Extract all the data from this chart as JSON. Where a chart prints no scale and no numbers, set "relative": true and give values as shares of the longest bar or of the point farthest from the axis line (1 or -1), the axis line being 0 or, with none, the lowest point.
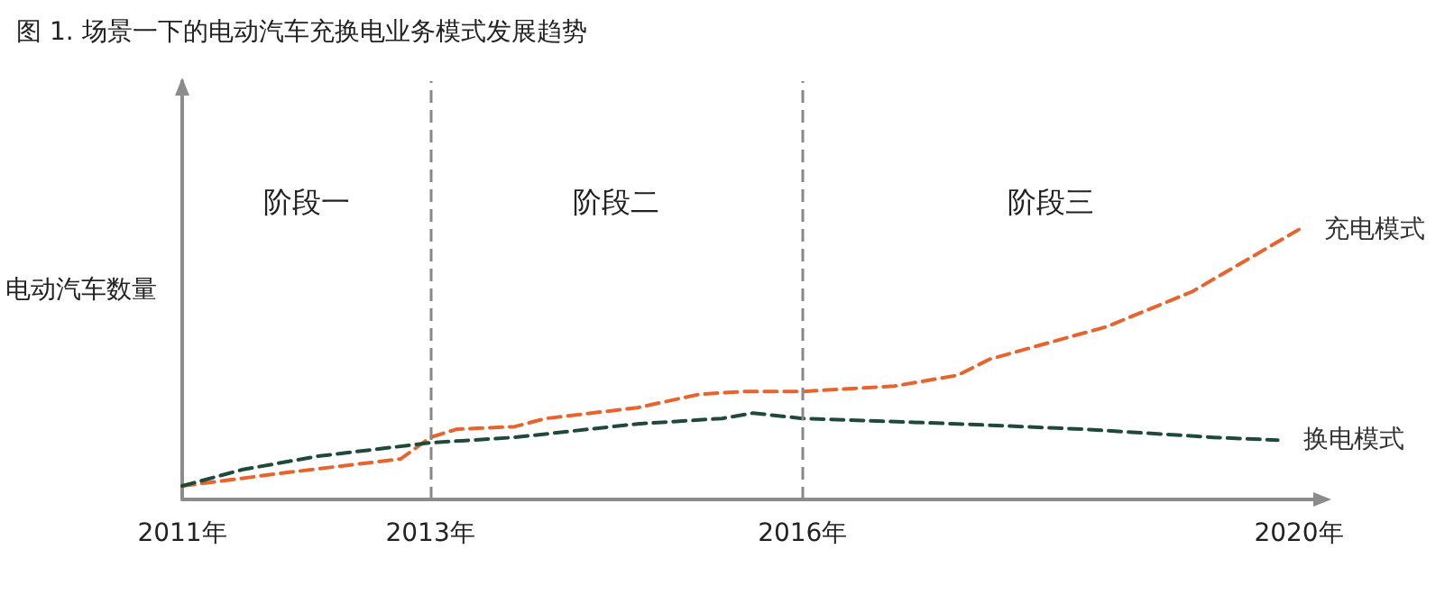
{
  "chart_data": {
    "type": "line",
    "title": "图 1. 场景一下的电动汽车充换电业务模式发展趋势",
    "ylabel": "电动汽车数量",
    "relative": true,
    "xlim": [
      2011,
      2020
    ],
    "xticks": [
      {
        "value": 2011,
        "label": "2011年"
      },
      {
        "value": 2013,
        "label": "2013年"
      },
      {
        "value": 2016,
        "label": "2016年"
      },
      {
        "value": 2020,
        "label": "2020年"
      }
    ],
    "annotations": [
      "阶段一",
      "阶段二",
      "阶段三"
    ],
    "ref_lines": [
      {
        "axis": "x",
        "value": 2013,
        "color": "#888888",
        "line_style": "dashed"
      },
      {
        "axis": "x",
        "value": 2016,
        "color": "#888888",
        "line_style": "dashed"
      }
    ],
    "grid": false,
    "legend": false,
    "marker": "none",
    "series": [
      {
        "name": "充电模式",
        "color": "#e8642c",
        "line_style": "dashed",
        "x": [
          2011,
          2011.85,
          2012.76,
          2013,
          2013.21,
          2013.68,
          2013.93,
          2014.67,
          2015.17,
          2015.54,
          2016,
          2016.74,
          2017.25,
          2017.51,
          2018.45,
          2019.14,
          2020
        ],
        "values": [
          0.05,
          0.1,
          0.15,
          0.23,
          0.26,
          0.27,
          0.3,
          0.34,
          0.39,
          0.4,
          0.4,
          0.42,
          0.46,
          0.52,
          0.64,
          0.77,
          1
        ]
      },
      {
        "name": "换电模式",
        "color": "#1f4a3a",
        "line_style": "dashed",
        "x": [
          2011,
          2011.48,
          2012.09,
          2013,
          2013.68,
          2014.67,
          2015.35,
          2015.6,
          2016,
          2017.25,
          2018.28,
          2019.31,
          2019.83
        ],
        "values": [
          0.05,
          0.11,
          0.16,
          0.21,
          0.23,
          0.28,
          0.3,
          0.32,
          0.3,
          0.28,
          0.26,
          0.23,
          0.22
        ]
      }
    ]
  }
}
